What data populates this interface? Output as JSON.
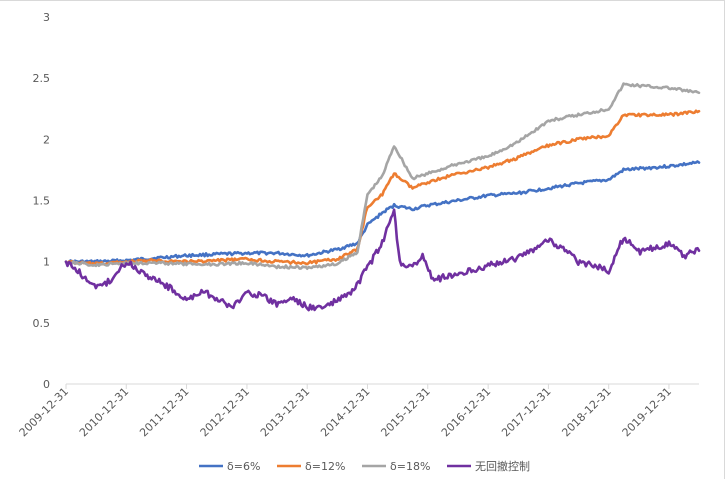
{
  "chart_data": {
    "type": "line",
    "title": "",
    "xlabel": "",
    "ylabel": "",
    "ylim": [
      0,
      3
    ],
    "y_ticks": [
      "0",
      "0.5",
      "1",
      "1.5",
      "2",
      "2.5",
      "3"
    ],
    "x_ticks": [
      "2009-12-31",
      "2010-12-31",
      "2011-12-31",
      "2012-12-31",
      "2013-12-31",
      "2014-12-31",
      "2015-12-31",
      "2016-12-31",
      "2017-12-31",
      "2018-12-31",
      "2019-12-31"
    ],
    "x_range": [
      "2009-12-31",
      "2020-06-30"
    ],
    "grid": false,
    "legend_position": "bottom",
    "series": [
      {
        "name": "δ=6%",
        "color": "#4472C4",
        "points": [
          [
            "2009-12-31",
            1.0
          ],
          [
            "2010-06-30",
            1.0
          ],
          [
            "2010-12-31",
            1.01
          ],
          [
            "2011-06-30",
            1.03
          ],
          [
            "2011-12-31",
            1.05
          ],
          [
            "2012-06-30",
            1.06
          ],
          [
            "2012-12-31",
            1.07
          ],
          [
            "2013-06-30",
            1.07
          ],
          [
            "2013-12-31",
            1.05
          ],
          [
            "2014-06-30",
            1.1
          ],
          [
            "2014-10-31",
            1.15
          ],
          [
            "2014-12-31",
            1.3
          ],
          [
            "2015-03-31",
            1.4
          ],
          [
            "2015-06-10",
            1.46
          ],
          [
            "2015-09-30",
            1.43
          ],
          [
            "2015-12-31",
            1.46
          ],
          [
            "2016-06-30",
            1.5
          ],
          [
            "2016-12-31",
            1.54
          ],
          [
            "2017-06-30",
            1.56
          ],
          [
            "2017-12-31",
            1.6
          ],
          [
            "2018-06-30",
            1.64
          ],
          [
            "2018-12-31",
            1.67
          ],
          [
            "2019-03-31",
            1.75
          ],
          [
            "2019-12-31",
            1.78
          ],
          [
            "2020-06-30",
            1.81
          ]
        ]
      },
      {
        "name": "δ=12%",
        "color": "#ED7D31",
        "points": [
          [
            "2009-12-31",
            1.0
          ],
          [
            "2010-06-30",
            0.98
          ],
          [
            "2010-12-31",
            1.0
          ],
          [
            "2011-06-30",
            1.01
          ],
          [
            "2011-12-31",
            1.0
          ],
          [
            "2012-06-30",
            1.01
          ],
          [
            "2012-12-31",
            1.02
          ],
          [
            "2013-06-30",
            1.0
          ],
          [
            "2013-12-31",
            0.99
          ],
          [
            "2014-06-30",
            1.02
          ],
          [
            "2014-10-31",
            1.1
          ],
          [
            "2014-12-31",
            1.45
          ],
          [
            "2015-03-31",
            1.55
          ],
          [
            "2015-06-10",
            1.72
          ],
          [
            "2015-09-30",
            1.6
          ],
          [
            "2015-12-31",
            1.65
          ],
          [
            "2016-06-30",
            1.72
          ],
          [
            "2016-12-31",
            1.77
          ],
          [
            "2017-06-30",
            1.85
          ],
          [
            "2017-12-31",
            1.95
          ],
          [
            "2018-06-30",
            2.0
          ],
          [
            "2018-12-31",
            2.03
          ],
          [
            "2019-03-31",
            2.2
          ],
          [
            "2019-12-31",
            2.2
          ],
          [
            "2020-06-30",
            2.23
          ]
        ]
      },
      {
        "name": "δ=18%",
        "color": "#A5A5A5",
        "points": [
          [
            "2009-12-31",
            1.0
          ],
          [
            "2010-06-30",
            0.97
          ],
          [
            "2010-12-31",
            0.99
          ],
          [
            "2011-06-30",
            0.99
          ],
          [
            "2011-12-31",
            0.98
          ],
          [
            "2012-06-30",
            0.98
          ],
          [
            "2012-12-31",
            0.99
          ],
          [
            "2013-06-30",
            0.96
          ],
          [
            "2013-12-31",
            0.95
          ],
          [
            "2014-06-30",
            0.98
          ],
          [
            "2014-10-31",
            1.08
          ],
          [
            "2014-12-31",
            1.55
          ],
          [
            "2015-03-31",
            1.7
          ],
          [
            "2015-06-10",
            1.95
          ],
          [
            "2015-09-30",
            1.68
          ],
          [
            "2015-12-31",
            1.72
          ],
          [
            "2016-06-30",
            1.8
          ],
          [
            "2016-12-31",
            1.86
          ],
          [
            "2017-06-30",
            1.98
          ],
          [
            "2017-12-31",
            2.15
          ],
          [
            "2018-06-30",
            2.2
          ],
          [
            "2018-12-31",
            2.25
          ],
          [
            "2019-03-31",
            2.45
          ],
          [
            "2019-12-31",
            2.42
          ],
          [
            "2020-06-30",
            2.38
          ]
        ]
      },
      {
        "name": "无回撤控制",
        "color": "#7030A0",
        "points": [
          [
            "2009-12-31",
            1.0
          ],
          [
            "2010-03-31",
            0.9
          ],
          [
            "2010-06-30",
            0.78
          ],
          [
            "2010-09-30",
            0.85
          ],
          [
            "2010-12-31",
            1.0
          ],
          [
            "2011-03-31",
            0.92
          ],
          [
            "2011-06-30",
            0.85
          ],
          [
            "2011-09-30",
            0.78
          ],
          [
            "2011-12-31",
            0.68
          ],
          [
            "2012-03-31",
            0.76
          ],
          [
            "2012-06-30",
            0.7
          ],
          [
            "2012-09-30",
            0.62
          ],
          [
            "2012-12-31",
            0.75
          ],
          [
            "2013-03-31",
            0.72
          ],
          [
            "2013-06-30",
            0.65
          ],
          [
            "2013-09-30",
            0.7
          ],
          [
            "2013-12-31",
            0.63
          ],
          [
            "2014-03-31",
            0.62
          ],
          [
            "2014-06-30",
            0.68
          ],
          [
            "2014-09-30",
            0.75
          ],
          [
            "2014-12-31",
            0.95
          ],
          [
            "2015-03-31",
            1.15
          ],
          [
            "2015-06-10",
            1.42
          ],
          [
            "2015-07-15",
            1.0
          ],
          [
            "2015-09-30",
            0.95
          ],
          [
            "2015-11-30",
            1.05
          ],
          [
            "2016-01-31",
            0.85
          ],
          [
            "2016-06-30",
            0.9
          ],
          [
            "2016-12-31",
            0.97
          ],
          [
            "2017-06-30",
            1.03
          ],
          [
            "2017-12-31",
            1.18
          ],
          [
            "2018-03-31",
            1.1
          ],
          [
            "2018-06-30",
            1.0
          ],
          [
            "2018-12-31",
            0.93
          ],
          [
            "2019-03-31",
            1.2
          ],
          [
            "2019-06-30",
            1.08
          ],
          [
            "2019-12-31",
            1.15
          ],
          [
            "2020-03-31",
            1.05
          ],
          [
            "2020-06-30",
            1.09
          ]
        ]
      }
    ]
  }
}
